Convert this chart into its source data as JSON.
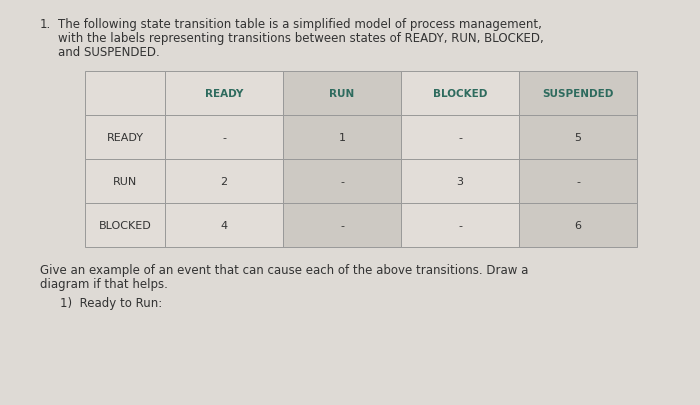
{
  "background_color": "#dedad5",
  "title_number": "1.",
  "title_line1": "The following state transition table is a simplified model of process management,",
  "title_line2": "with the labels representing transitions between states of READY, RUN, BLOCKED,",
  "title_line3": "and SUSPENDED.",
  "col_headers": [
    "READY",
    "RUN",
    "BLOCKED",
    "SUSPENDED"
  ],
  "row_headers": [
    "READY",
    "RUN",
    "BLOCKED"
  ],
  "table_data": [
    [
      "-",
      "1",
      "-",
      "5"
    ],
    [
      "2",
      "-",
      "3",
      "-"
    ],
    [
      "4",
      "-",
      "-",
      "6"
    ]
  ],
  "footer_line1": "Give an example of an event that can cause each of the above transitions. Draw a",
  "footer_line2": "diagram if that helps.",
  "sub_item": "1)  Ready to Run:",
  "table_bg_light": "#e2ddd8",
  "table_bg_dark": "#cdc9c3",
  "border_color": "#999999",
  "text_color": "#333333",
  "header_text_color": "#2e6b5e",
  "title_fontsize": 8.5,
  "table_fontsize": 8.0,
  "footer_fontsize": 8.5
}
